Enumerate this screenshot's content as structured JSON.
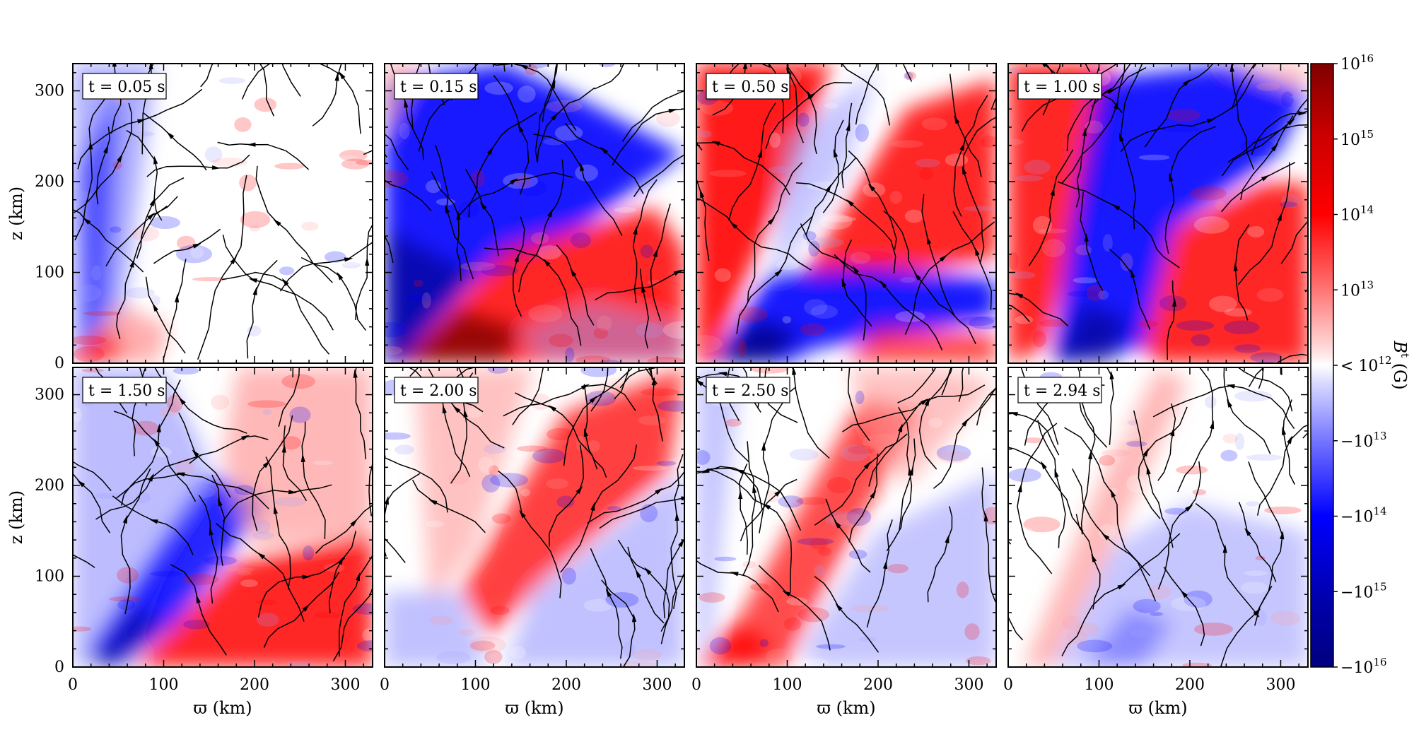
{
  "chart_data": {
    "type": "heatmap",
    "quantity": "B^t (G)",
    "colorbar": {
      "label_symbol": "B",
      "label_superscript": "t",
      "label_unit": "(G)",
      "ticks": [
        {
          "base": "10",
          "exp": "16",
          "prefix": "",
          "value": 1e+16
        },
        {
          "base": "10",
          "exp": "15",
          "prefix": "",
          "value": 1000000000000000.0
        },
        {
          "base": "10",
          "exp": "14",
          "prefix": "",
          "value": 100000000000000.0
        },
        {
          "base": "10",
          "exp": "13",
          "prefix": "",
          "value": 10000000000000.0
        },
        {
          "base": "10",
          "exp": "12",
          "prefix": "< ",
          "value": 1000000000000.0
        },
        {
          "base": "10",
          "exp": "13",
          "prefix": "−",
          "value": -10000000000000.0
        },
        {
          "base": "10",
          "exp": "14",
          "prefix": "−",
          "value": -100000000000000.0
        },
        {
          "base": "10",
          "exp": "15",
          "prefix": "−",
          "value": -1000000000000000.0
        },
        {
          "base": "10",
          "exp": "16",
          "prefix": "−",
          "value": -1e+16
        }
      ],
      "colors": {
        "strong_positive": "#7f0000",
        "positive": "#ff0000",
        "weak_positive": "#ff9a9a",
        "neutral": "#ffffff",
        "weak_negative": "#a0a0ff",
        "negative": "#0000ff",
        "strong_negative": "#00007f"
      }
    },
    "xlabel": "ϖ (km)",
    "ylabel": "z (km)",
    "xlim": [
      0,
      330
    ],
    "ylim": [
      0,
      330
    ],
    "xticks": [
      "0",
      "100",
      "200",
      "300"
    ],
    "yticks": [
      "0",
      "100",
      "200",
      "300"
    ],
    "panels": [
      {
        "time": "t = 0.05 s"
      },
      {
        "time": "t = 0.15 s"
      },
      {
        "time": "t = 0.50 s"
      },
      {
        "time": "t = 1.00 s"
      },
      {
        "time": "t = 1.50 s"
      },
      {
        "time": "t = 2.00 s"
      },
      {
        "time": "t = 2.50 s"
      },
      {
        "time": "t = 2.94 s"
      }
    ]
  }
}
